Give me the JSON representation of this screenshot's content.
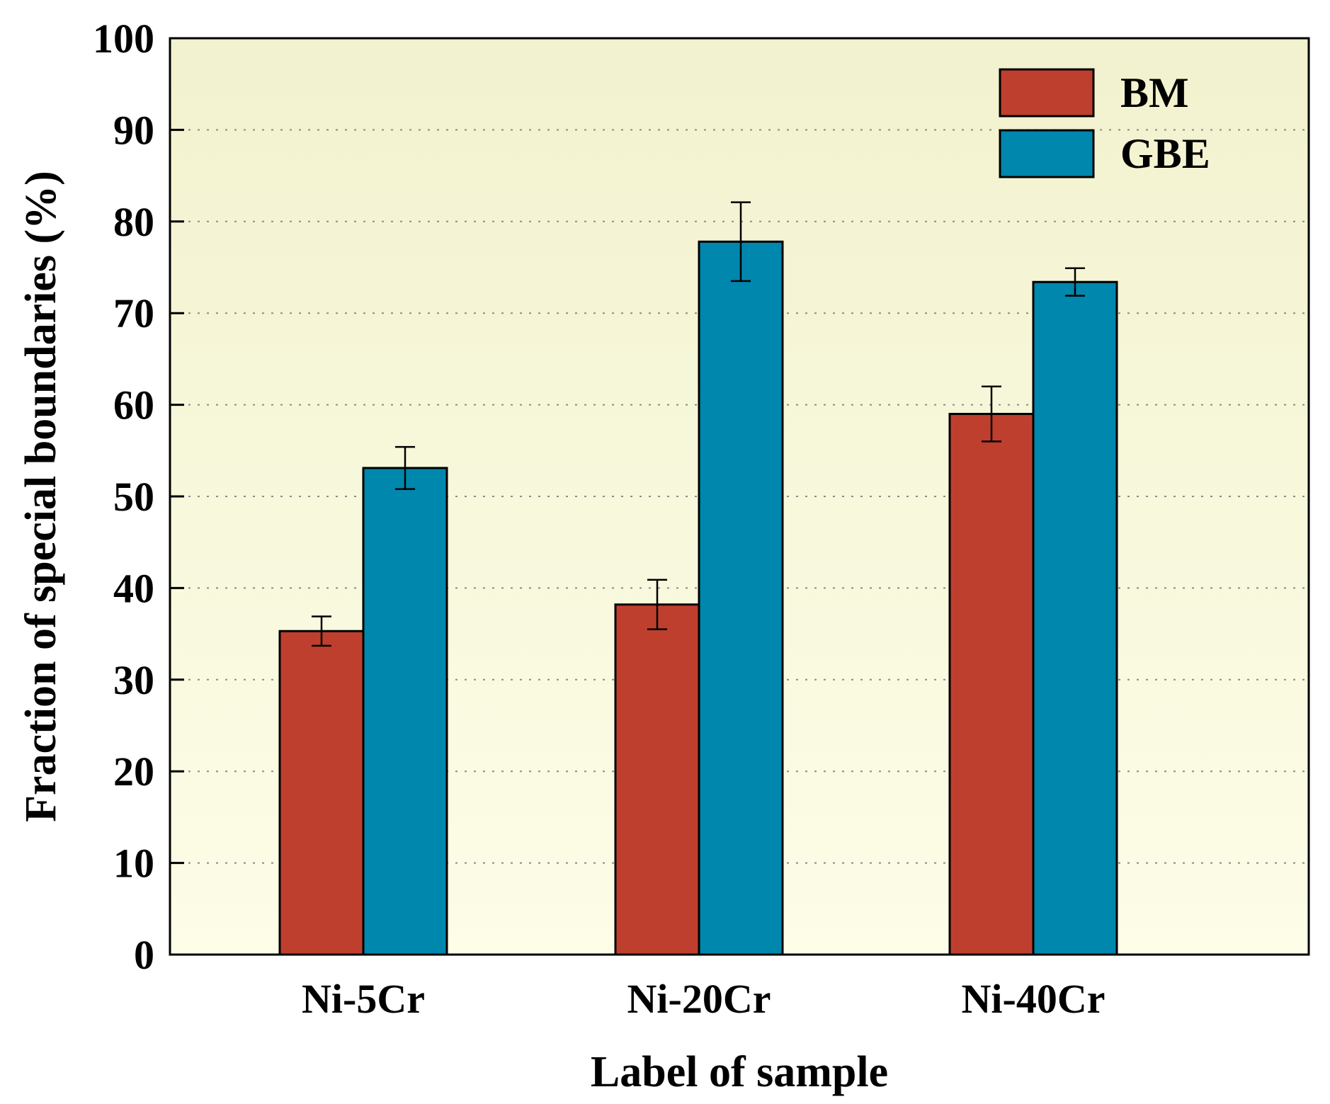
{
  "chart_data": {
    "type": "bar",
    "title": "",
    "xlabel": "Label of sample",
    "ylabel": "Fraction of special boundaries (%)",
    "ylim": [
      0,
      100
    ],
    "yticks": [
      "0",
      "10",
      "20",
      "30",
      "40",
      "50",
      "60",
      "70",
      "80",
      "90",
      "100"
    ],
    "categories": [
      "Ni-5Cr",
      "Ni-20Cr",
      "Ni-40Cr"
    ],
    "grid": "horizontal dotted",
    "legend_position": "top-right",
    "series": [
      {
        "name": "BM",
        "color": "#bf3f2e",
        "values": [
          35.3,
          38.2,
          59.0
        ],
        "errors": [
          1.6,
          2.7,
          3.0
        ]
      },
      {
        "name": "GBE",
        "color": "#0087ad",
        "values": [
          53.1,
          77.8,
          73.4
        ],
        "errors": [
          2.3,
          4.3,
          1.5
        ]
      }
    ],
    "background_top": "#f2f2cf",
    "background_bottom": "#fdfde8"
  }
}
